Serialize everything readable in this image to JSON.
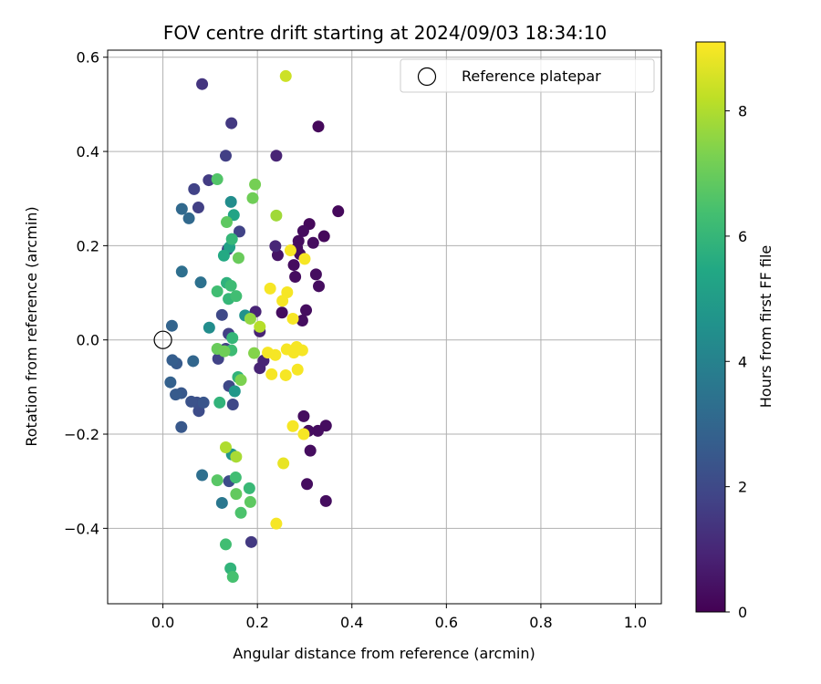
{
  "chart_data": {
    "type": "scatter",
    "title": "FOV centre drift starting at 2024/09/03 18:34:10",
    "xlabel": "Angular distance from reference (arcmin)",
    "ylabel": "Rotation from reference (arcmin)",
    "xlim": [
      -0.117,
      1.055
    ],
    "ylim": [
      -0.56,
      0.615
    ],
    "xticks": [
      0.0,
      0.2,
      0.4,
      0.6,
      0.8,
      1.0
    ],
    "xtick_labels": [
      "0.0",
      "0.2",
      "0.4",
      "0.6",
      "0.8",
      "1.0"
    ],
    "yticks": [
      -0.4,
      -0.2,
      0.0,
      0.2,
      0.4,
      0.6
    ],
    "ytick_labels": [
      "−0.4",
      "−0.2",
      "0.0",
      "0.2",
      "0.4",
      "0.6"
    ],
    "grid": true,
    "legend": {
      "label": "Reference platepar",
      "placement": "top-right"
    },
    "reference_point": {
      "x": 0.0,
      "y": 0.0
    },
    "colorbar": {
      "label": "Hours from first FF file",
      "colormap": "viridis",
      "min": 0,
      "max": 9.1,
      "ticks": [
        0,
        2,
        4,
        6,
        8
      ],
      "tick_labels": [
        "0",
        "2",
        "4",
        "6",
        "8"
      ]
    },
    "points": [
      {
        "x": 0.329,
        "y": 0.453,
        "c": 0.2
      },
      {
        "x": 0.371,
        "y": 0.273,
        "c": 0.2
      },
      {
        "x": 0.341,
        "y": 0.22,
        "c": 0.2
      },
      {
        "x": 0.31,
        "y": 0.246,
        "c": 0.2
      },
      {
        "x": 0.318,
        "y": 0.206,
        "c": 0.3
      },
      {
        "x": 0.297,
        "y": 0.231,
        "c": 0.3
      },
      {
        "x": 0.287,
        "y": 0.21,
        "c": 0.3
      },
      {
        "x": 0.284,
        "y": 0.195,
        "c": 0.3
      },
      {
        "x": 0.29,
        "y": 0.182,
        "c": 0.3
      },
      {
        "x": 0.277,
        "y": 0.159,
        "c": 0.3
      },
      {
        "x": 0.28,
        "y": 0.134,
        "c": 0.3
      },
      {
        "x": 0.324,
        "y": 0.139,
        "c": 0.3
      },
      {
        "x": 0.33,
        "y": 0.114,
        "c": 0.3
      },
      {
        "x": 0.303,
        "y": 0.063,
        "c": 0.3
      },
      {
        "x": 0.295,
        "y": 0.041,
        "c": 0.3
      },
      {
        "x": 0.252,
        "y": 0.058,
        "c": 0.3
      },
      {
        "x": 0.298,
        "y": -0.162,
        "c": 0.3
      },
      {
        "x": 0.345,
        "y": -0.182,
        "c": 0.3
      },
      {
        "x": 0.328,
        "y": -0.193,
        "c": 0.3
      },
      {
        "x": 0.308,
        "y": -0.193,
        "c": 0.3
      },
      {
        "x": 0.312,
        "y": -0.235,
        "c": 0.3
      },
      {
        "x": 0.305,
        "y": -0.306,
        "c": 0.3
      },
      {
        "x": 0.345,
        "y": -0.342,
        "c": 0.3
      },
      {
        "x": 0.243,
        "y": 0.18,
        "c": 0.5
      },
      {
        "x": 0.238,
        "y": 0.199,
        "c": 1.0
      },
      {
        "x": 0.24,
        "y": 0.391,
        "c": 0.9
      },
      {
        "x": 0.196,
        "y": 0.06,
        "c": 0.9
      },
      {
        "x": 0.205,
        "y": 0.018,
        "c": 0.9
      },
      {
        "x": 0.205,
        "y": -0.06,
        "c": 0.9
      },
      {
        "x": 0.213,
        "y": -0.044,
        "c": 0.9
      },
      {
        "x": 0.187,
        "y": -0.429,
        "c": 1.5
      },
      {
        "x": 0.083,
        "y": 0.543,
        "c": 1.4
      },
      {
        "x": 0.145,
        "y": 0.46,
        "c": 1.5
      },
      {
        "x": 0.133,
        "y": 0.391,
        "c": 1.7
      },
      {
        "x": 0.097,
        "y": 0.339,
        "c": 1.6
      },
      {
        "x": 0.066,
        "y": 0.32,
        "c": 1.8
      },
      {
        "x": 0.075,
        "y": 0.281,
        "c": 1.7
      },
      {
        "x": 0.162,
        "y": 0.23,
        "c": 1.8
      },
      {
        "x": 0.137,
        "y": 0.192,
        "c": 1.8
      },
      {
        "x": 0.125,
        "y": 0.053,
        "c": 2.0
      },
      {
        "x": 0.133,
        "y": -0.019,
        "c": 1.7
      },
      {
        "x": 0.139,
        "y": 0.013,
        "c": 1.7
      },
      {
        "x": 0.117,
        "y": -0.04,
        "c": 1.8
      },
      {
        "x": 0.14,
        "y": -0.098,
        "c": 2.0
      },
      {
        "x": 0.148,
        "y": -0.137,
        "c": 2.0
      },
      {
        "x": 0.14,
        "y": -0.3,
        "c": 2.1
      },
      {
        "x": 0.076,
        "y": -0.151,
        "c": 2.1
      },
      {
        "x": 0.072,
        "y": -0.133,
        "c": 2.2
      },
      {
        "x": 0.06,
        "y": -0.131,
        "c": 2.3
      },
      {
        "x": 0.086,
        "y": -0.133,
        "c": 2.4
      },
      {
        "x": 0.039,
        "y": -0.185,
        "c": 2.5
      },
      {
        "x": 0.039,
        "y": -0.113,
        "c": 2.5
      },
      {
        "x": 0.027,
        "y": -0.116,
        "c": 2.6
      },
      {
        "x": 0.029,
        "y": -0.05,
        "c": 2.6
      },
      {
        "x": 0.02,
        "y": -0.043,
        "c": 2.7
      },
      {
        "x": 0.016,
        "y": -0.09,
        "c": 2.8
      },
      {
        "x": 0.019,
        "y": 0.03,
        "c": 2.9
      },
      {
        "x": 0.064,
        "y": -0.045,
        "c": 3.0
      },
      {
        "x": 0.04,
        "y": 0.278,
        "c": 3.1
      },
      {
        "x": 0.055,
        "y": 0.258,
        "c": 3.1
      },
      {
        "x": 0.04,
        "y": 0.145,
        "c": 3.3
      },
      {
        "x": 0.08,
        "y": 0.122,
        "c": 3.4
      },
      {
        "x": 0.083,
        "y": -0.287,
        "c": 3.3
      },
      {
        "x": 0.125,
        "y": -0.346,
        "c": 3.6
      },
      {
        "x": 0.098,
        "y": 0.026,
        "c": 4.4
      },
      {
        "x": 0.144,
        "y": 0.293,
        "c": 4.4
      },
      {
        "x": 0.174,
        "y": 0.052,
        "c": 4.6
      },
      {
        "x": 0.152,
        "y": -0.109,
        "c": 4.8
      },
      {
        "x": 0.146,
        "y": -0.243,
        "c": 4.7
      },
      {
        "x": 0.15,
        "y": 0.265,
        "c": 5.3
      },
      {
        "x": 0.141,
        "y": 0.197,
        "c": 5.2
      },
      {
        "x": 0.129,
        "y": 0.179,
        "c": 5.5
      },
      {
        "x": 0.135,
        "y": 0.121,
        "c": 5.8
      },
      {
        "x": 0.146,
        "y": 0.214,
        "c": 6.0
      },
      {
        "x": 0.139,
        "y": 0.087,
        "c": 6.0
      },
      {
        "x": 0.159,
        "y": -0.079,
        "c": 5.9
      },
      {
        "x": 0.147,
        "y": 0.004,
        "c": 6.0
      },
      {
        "x": 0.145,
        "y": -0.022,
        "c": 6.2
      },
      {
        "x": 0.12,
        "y": -0.133,
        "c": 5.9
      },
      {
        "x": 0.144,
        "y": 0.115,
        "c": 6.2
      },
      {
        "x": 0.115,
        "y": 0.103,
        "c": 6.3
      },
      {
        "x": 0.155,
        "y": 0.093,
        "c": 6.3
      },
      {
        "x": 0.183,
        "y": -0.315,
        "c": 6.1
      },
      {
        "x": 0.154,
        "y": -0.292,
        "c": 6.3
      },
      {
        "x": 0.143,
        "y": -0.485,
        "c": 5.9
      },
      {
        "x": 0.133,
        "y": -0.434,
        "c": 6.3
      },
      {
        "x": 0.148,
        "y": -0.503,
        "c": 6.4
      },
      {
        "x": 0.165,
        "y": -0.367,
        "c": 6.5
      },
      {
        "x": 0.115,
        "y": -0.298,
        "c": 6.7
      },
      {
        "x": 0.185,
        "y": -0.344,
        "c": 6.8
      },
      {
        "x": 0.155,
        "y": -0.327,
        "c": 6.9
      },
      {
        "x": 0.115,
        "y": 0.341,
        "c": 6.6
      },
      {
        "x": 0.135,
        "y": 0.25,
        "c": 6.8
      },
      {
        "x": 0.16,
        "y": 0.174,
        "c": 7.0
      },
      {
        "x": 0.19,
        "y": 0.301,
        "c": 7.1
      },
      {
        "x": 0.195,
        "y": 0.33,
        "c": 7.2
      },
      {
        "x": 0.115,
        "y": -0.019,
        "c": 7.0
      },
      {
        "x": 0.13,
        "y": -0.024,
        "c": 7.1
      },
      {
        "x": 0.165,
        "y": -0.085,
        "c": 7.3
      },
      {
        "x": 0.193,
        "y": -0.028,
        "c": 7.4
      },
      {
        "x": 0.185,
        "y": 0.045,
        "c": 7.6
      },
      {
        "x": 0.133,
        "y": -0.228,
        "c": 8.0
      },
      {
        "x": 0.155,
        "y": -0.248,
        "c": 7.9
      },
      {
        "x": 0.205,
        "y": 0.028,
        "c": 8.1
      },
      {
        "x": 0.24,
        "y": 0.264,
        "c": 7.8
      },
      {
        "x": 0.26,
        "y": 0.56,
        "c": 8.4
      },
      {
        "x": 0.255,
        "y": -0.262,
        "c": 8.8
      },
      {
        "x": 0.298,
        "y": -0.2,
        "c": 9.0
      },
      {
        "x": 0.275,
        "y": -0.183,
        "c": 9.0
      },
      {
        "x": 0.24,
        "y": -0.39,
        "c": 9.0
      },
      {
        "x": 0.23,
        "y": -0.073,
        "c": 9.0
      },
      {
        "x": 0.26,
        "y": -0.075,
        "c": 9.0
      },
      {
        "x": 0.285,
        "y": -0.063,
        "c": 9.0
      },
      {
        "x": 0.238,
        "y": -0.032,
        "c": 9.0
      },
      {
        "x": 0.222,
        "y": -0.027,
        "c": 9.0
      },
      {
        "x": 0.262,
        "y": -0.02,
        "c": 9.0
      },
      {
        "x": 0.283,
        "y": -0.015,
        "c": 9.0
      },
      {
        "x": 0.277,
        "y": -0.027,
        "c": 9.0
      },
      {
        "x": 0.295,
        "y": -0.022,
        "c": 9.0
      },
      {
        "x": 0.275,
        "y": 0.045,
        "c": 9.0
      },
      {
        "x": 0.253,
        "y": 0.083,
        "c": 9.0
      },
      {
        "x": 0.227,
        "y": 0.109,
        "c": 9.0
      },
      {
        "x": 0.263,
        "y": 0.101,
        "c": 9.0
      },
      {
        "x": 0.27,
        "y": 0.19,
        "c": 9.0
      },
      {
        "x": 0.3,
        "y": 0.172,
        "c": 9.0
      }
    ]
  }
}
